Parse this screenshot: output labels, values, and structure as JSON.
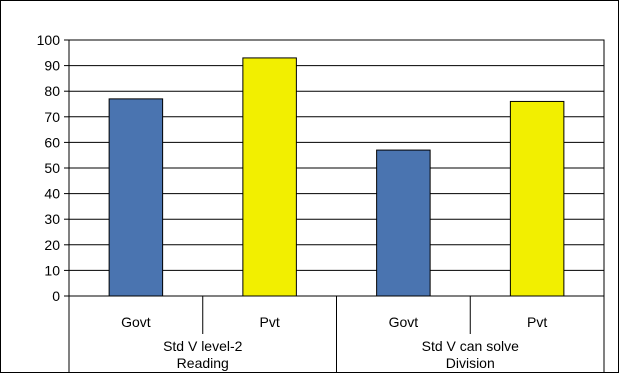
{
  "chart_data": {
    "type": "bar",
    "title": "",
    "xlabel": "",
    "ylabel": "",
    "ylim": [
      0,
      100
    ],
    "yticks": [
      0,
      10,
      20,
      30,
      40,
      50,
      60,
      70,
      80,
      90,
      100
    ],
    "grid": true,
    "legend": "none",
    "groups": [
      {
        "label_lines": [
          "Std V level-2",
          "Reading"
        ],
        "bars": [
          {
            "label": "Govt",
            "value": 77,
            "color": "#4a74b0"
          },
          {
            "label": "Pvt",
            "value": 93,
            "color": "#f2ef00"
          }
        ]
      },
      {
        "label_lines": [
          "Std V can solve",
          "Division"
        ],
        "bars": [
          {
            "label": "Govt",
            "value": 57,
            "color": "#4a74b0"
          },
          {
            "label": "Pvt",
            "value": 76,
            "color": "#f2ef00"
          }
        ]
      }
    ]
  }
}
